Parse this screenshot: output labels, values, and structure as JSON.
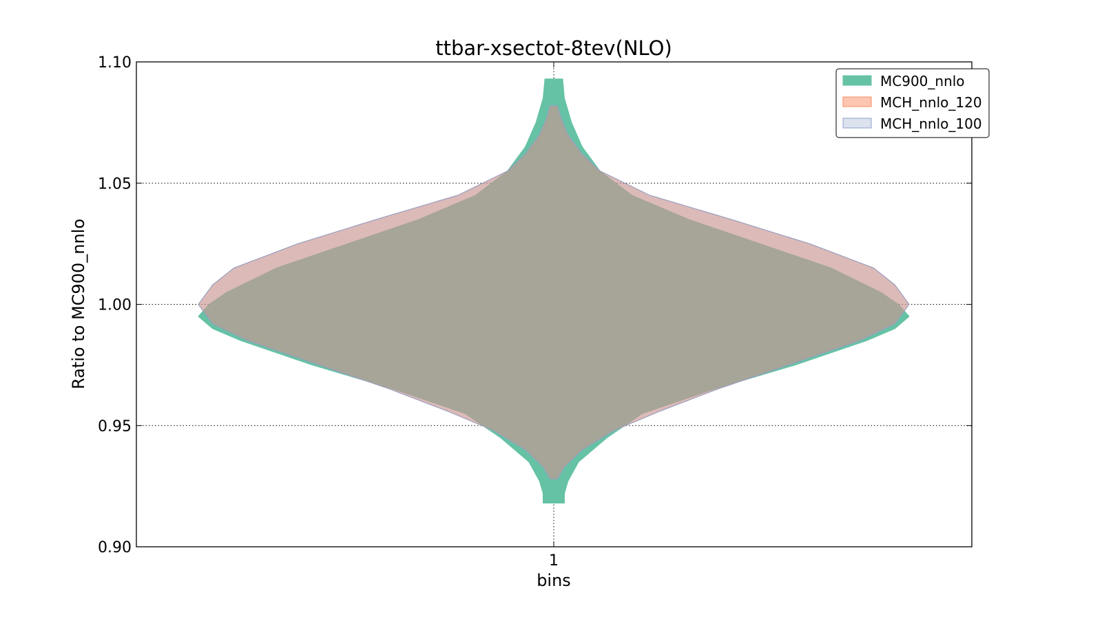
{
  "chart_data": {
    "type": "violin",
    "title": "ttbar-xsectot-8tev(NLO)",
    "xlabel": "bins",
    "ylabel": "Ratio to MC900_nnlo",
    "categories": [
      "1"
    ],
    "ylim": [
      0.9,
      1.1
    ],
    "yticks": [
      "0.90",
      "0.95",
      "1.00",
      "1.05",
      "1.10"
    ],
    "grid": true,
    "legend_position": "top-right",
    "series": [
      {
        "name": "MC900_nnlo",
        "color": "#66c2a5",
        "edge": "#66c2a5",
        "alpha": 1.0,
        "profile": [
          [
            0.918,
            0.03
          ],
          [
            0.922,
            0.03
          ],
          [
            0.927,
            0.04
          ],
          [
            0.935,
            0.07
          ],
          [
            0.945,
            0.15
          ],
          [
            0.955,
            0.25
          ],
          [
            0.965,
            0.45
          ],
          [
            0.975,
            0.68
          ],
          [
            0.985,
            0.88
          ],
          [
            0.99,
            0.96
          ],
          [
            0.995,
            1.0
          ],
          [
            1.0,
            0.97
          ],
          [
            1.005,
            0.92
          ],
          [
            1.015,
            0.78
          ],
          [
            1.025,
            0.58
          ],
          [
            1.035,
            0.38
          ],
          [
            1.045,
            0.22
          ],
          [
            1.055,
            0.13
          ],
          [
            1.065,
            0.08
          ],
          [
            1.075,
            0.05
          ],
          [
            1.085,
            0.03
          ],
          [
            1.093,
            0.025
          ]
        ]
      },
      {
        "name": "MCH_nnlo_120",
        "color": "#fc8d62",
        "edge": "#fc8d62",
        "alpha": 0.5,
        "profile": [
          [
            0.928,
            0.01
          ],
          [
            0.933,
            0.03
          ],
          [
            0.94,
            0.08
          ],
          [
            0.948,
            0.17
          ],
          [
            0.956,
            0.3
          ],
          [
            0.965,
            0.46
          ],
          [
            0.975,
            0.66
          ],
          [
            0.985,
            0.86
          ],
          [
            0.992,
            0.96
          ],
          [
            1.0,
            1.0
          ],
          [
            1.008,
            0.96
          ],
          [
            1.015,
            0.9
          ],
          [
            1.025,
            0.72
          ],
          [
            1.035,
            0.5
          ],
          [
            1.045,
            0.27
          ],
          [
            1.055,
            0.13
          ],
          [
            1.062,
            0.08
          ],
          [
            1.07,
            0.04
          ],
          [
            1.077,
            0.02
          ],
          [
            1.082,
            0.01
          ]
        ]
      },
      {
        "name": "MCH_nnlo_100",
        "color": "#8da0cb",
        "edge": "#8da0cb",
        "alpha": 0.3,
        "profile": [
          [
            0.928,
            0.01
          ],
          [
            0.933,
            0.03
          ],
          [
            0.94,
            0.08
          ],
          [
            0.948,
            0.17
          ],
          [
            0.956,
            0.3
          ],
          [
            0.965,
            0.46
          ],
          [
            0.975,
            0.66
          ],
          [
            0.985,
            0.86
          ],
          [
            0.992,
            0.96
          ],
          [
            1.0,
            1.0
          ],
          [
            1.008,
            0.96
          ],
          [
            1.015,
            0.9
          ],
          [
            1.025,
            0.72
          ],
          [
            1.035,
            0.5
          ],
          [
            1.045,
            0.27
          ],
          [
            1.055,
            0.13
          ],
          [
            1.062,
            0.08
          ],
          [
            1.07,
            0.04
          ],
          [
            1.077,
            0.02
          ],
          [
            1.082,
            0.01
          ]
        ]
      }
    ]
  }
}
